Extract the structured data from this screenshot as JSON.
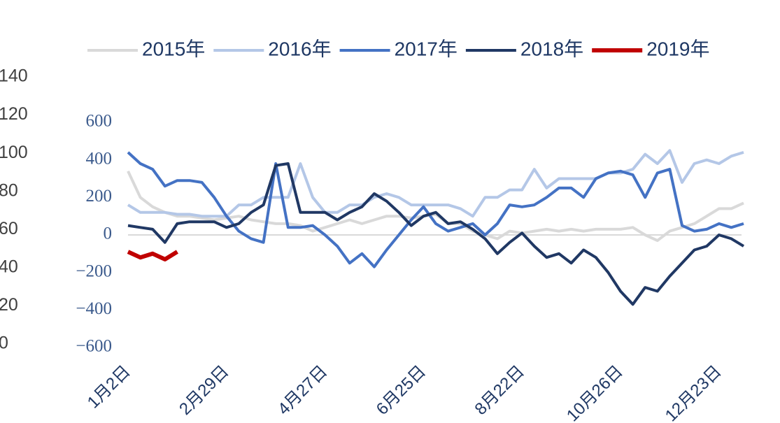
{
  "chart_data": {
    "type": "line",
    "categories": [
      "1月2日",
      null,
      null,
      null,
      null,
      null,
      null,
      null,
      "2月29日",
      null,
      null,
      null,
      null,
      null,
      null,
      null,
      "4月27日",
      null,
      null,
      null,
      null,
      null,
      null,
      null,
      "6月25日",
      null,
      null,
      null,
      null,
      null,
      null,
      null,
      "8月22日",
      null,
      null,
      null,
      null,
      null,
      null,
      null,
      "10月26日",
      null,
      null,
      null,
      null,
      null,
      null,
      null,
      "12月23日",
      null,
      null
    ],
    "series": [
      {
        "name": "2015年",
        "color": "#d9d9d9",
        "values": [
          340,
          200,
          150,
          120,
          100,
          100,
          90,
          80,
          90,
          100,
          80,
          70,
          60,
          60,
          50,
          20,
          40,
          60,
          80,
          60,
          80,
          100,
          100,
          90,
          100,
          110,
          60,
          60,
          20,
          0,
          -20,
          20,
          10,
          20,
          30,
          20,
          30,
          20,
          30,
          30,
          30,
          40,
          0,
          -30,
          20,
          40,
          60,
          100,
          140,
          140,
          170
        ]
      },
      {
        "name": "2016年",
        "color": "#b4c7e7",
        "values": [
          160,
          120,
          120,
          120,
          110,
          110,
          100,
          100,
          100,
          160,
          160,
          200,
          200,
          200,
          380,
          200,
          120,
          120,
          160,
          160,
          200,
          220,
          200,
          160,
          160,
          160,
          160,
          140,
          100,
          200,
          200,
          240,
          240,
          350,
          250,
          300,
          300,
          300,
          300,
          330,
          330,
          350,
          430,
          380,
          450,
          280,
          380,
          400,
          380,
          420,
          440
        ]
      },
      {
        "name": "2017年",
        "color": "#4472c4",
        "values": [
          440,
          380,
          350,
          260,
          290,
          290,
          280,
          200,
          100,
          20,
          -20,
          -40,
          380,
          40,
          40,
          50,
          0,
          -60,
          -150,
          -100,
          -170,
          -80,
          0,
          80,
          150,
          60,
          20,
          40,
          60,
          0,
          60,
          160,
          150,
          160,
          200,
          250,
          250,
          200,
          300,
          330,
          340,
          320,
          200,
          330,
          350,
          50,
          20,
          30,
          60,
          40,
          60
        ]
      },
      {
        "name": "2018年",
        "color": "#203864",
        "values": [
          50,
          40,
          30,
          -40,
          60,
          70,
          70,
          70,
          40,
          60,
          120,
          160,
          370,
          380,
          120,
          120,
          120,
          80,
          120,
          150,
          220,
          180,
          120,
          50,
          100,
          120,
          60,
          70,
          30,
          -20,
          -100,
          -40,
          10,
          -60,
          -120,
          -100,
          -150,
          -80,
          -120,
          -200,
          -300,
          -370,
          -280,
          -300,
          -220,
          -150,
          -80,
          -60,
          0,
          -20,
          -60
        ]
      },
      {
        "name": "2019年",
        "color": "#c00000",
        "values": [
          -90,
          -120,
          -100,
          -130,
          -90,
          null,
          null,
          null,
          null,
          null,
          null,
          null,
          null,
          null,
          null,
          null,
          null,
          null,
          null,
          null,
          null,
          null,
          null,
          null,
          null,
          null,
          null,
          null,
          null,
          null,
          null,
          null,
          null,
          null,
          null,
          null,
          null,
          null,
          null,
          null,
          null,
          null,
          null,
          null,
          null,
          null,
          null,
          null,
          null,
          null,
          null
        ]
      }
    ],
    "ylim": [
      -600,
      600
    ],
    "yticks": [
      {
        "value": -600,
        "label": "−600"
      },
      {
        "value": -400,
        "label": "−400"
      },
      {
        "value": -200,
        "label": "−200"
      },
      0,
      200,
      400,
      600
    ],
    "y2lim": [
      0,
      140
    ],
    "y2ticks": [
      0,
      20,
      40,
      60,
      80,
      100,
      120,
      140
    ],
    "legend": "top"
  }
}
